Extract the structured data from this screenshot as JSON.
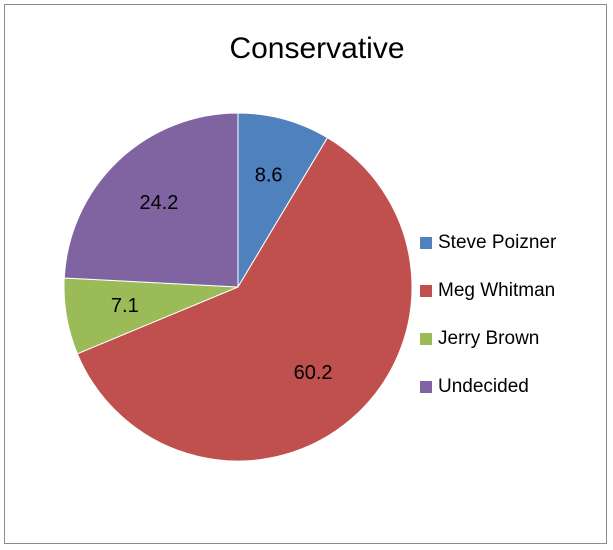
{
  "chart_data": {
    "type": "pie",
    "title": "Conservative",
    "categories": [
      "Steve Poizner",
      "Meg Whitman",
      "Jerry Brown",
      "Undecided"
    ],
    "values": [
      8.6,
      60.2,
      7.1,
      24.2
    ],
    "value_labels": [
      "8.6",
      "60.2",
      "7.1",
      "24.2"
    ],
    "colors": [
      "#4f81bd",
      "#c0504d",
      "#9bbb59",
      "#8064a2"
    ],
    "start_angle_deg": 0,
    "direction": "clockwise",
    "legend_position": "right"
  },
  "legend": {
    "items": [
      {
        "label": "Steve Poizner",
        "color": "#4f81bd"
      },
      {
        "label": "Meg Whitman",
        "color": "#c0504d"
      },
      {
        "label": "Jerry Brown",
        "color": "#9bbb59"
      },
      {
        "label": "Undecided",
        "color": "#8064a2"
      }
    ]
  }
}
